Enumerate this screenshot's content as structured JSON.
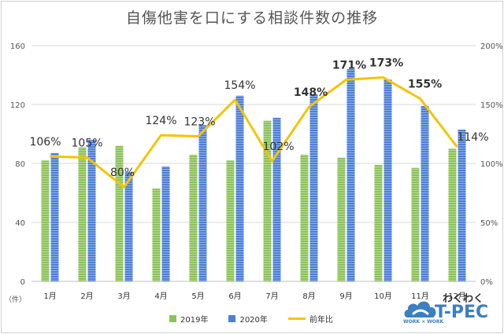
{
  "colors": {
    "series2019": "#8cc25a",
    "series2020": "#4d7fd8",
    "ratio": "#f5c400",
    "grid": "#d9d9d9",
    "axis_text": "#555555",
    "logo_blue": "#3b7fc0"
  },
  "chart_data": {
    "type": "bar",
    "title": "自傷他害を口にする相談件数の推移",
    "categories": [
      "1月",
      "2月",
      "3月",
      "4月",
      "5月",
      "6月",
      "7月",
      "8月",
      "9月",
      "10月",
      "11月",
      "12月"
    ],
    "series": [
      {
        "name": "2019年",
        "values": [
          82,
          91,
          92,
          63,
          86,
          82,
          109,
          86,
          84,
          79,
          77,
          90
        ]
      },
      {
        "name": "2020年",
        "values": [
          87,
          96,
          74,
          78,
          106,
          126,
          111,
          127,
          144,
          137,
          119,
          103
        ]
      }
    ],
    "line_series": {
      "name": "前年比",
      "axis": "right",
      "values": [
        106,
        105,
        80,
        124,
        123,
        154,
        102,
        148,
        171,
        173,
        155,
        114
      ],
      "labels": [
        "106%",
        "105%",
        "80%",
        "124%",
        "123%",
        "154%",
        "102%",
        "148%",
        "171%",
        "173%",
        "155%",
        "114%"
      ],
      "bold": [
        false,
        false,
        false,
        false,
        false,
        false,
        false,
        true,
        true,
        true,
        true,
        false
      ]
    },
    "ylim": [
      0,
      160
    ],
    "y_ticks": [
      0,
      40,
      80,
      120,
      160
    ],
    "y_unit": "（件）",
    "y2lim": [
      0,
      200
    ],
    "y2_ticks": [
      "0%",
      "50%",
      "100%",
      "150%",
      "200%"
    ],
    "y2_tick_values": [
      0,
      50,
      100,
      150,
      200
    ],
    "grid": true,
    "legend_position": "bottom"
  },
  "logo": {
    "kana": "わくわく",
    "brand": "T-PEC",
    "sub": "WORK × WORK"
  }
}
